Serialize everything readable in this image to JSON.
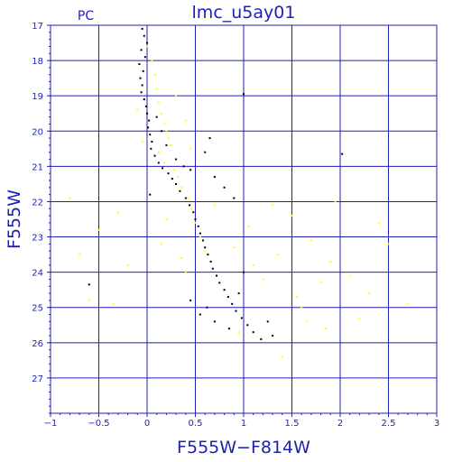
{
  "chart_data": {
    "type": "scatter",
    "title": "lmc_u5ay01",
    "panel_label": "PC",
    "xlabel": "F555W−F814W",
    "ylabel": "F555W",
    "xlim": [
      -1,
      3
    ],
    "ylim": [
      28,
      17
    ],
    "y_inverted": true,
    "grid": true,
    "x_ticks": [
      -1,
      -0.5,
      0,
      0.5,
      1,
      1.5,
      2,
      2.5,
      3
    ],
    "x_tick_labels": [
      "−1",
      "−0.5",
      "0",
      "0.5",
      "1",
      "1.5",
      "2",
      "2.5",
      "3"
    ],
    "y_ticks": [
      17,
      18,
      19,
      20,
      21,
      22,
      23,
      24,
      25,
      26,
      27
    ],
    "y_tick_labels": [
      "17",
      "18",
      "19",
      "20",
      "21",
      "22",
      "23",
      "24",
      "25",
      "26",
      "27"
    ],
    "series": [
      {
        "color": "#000000",
        "points": [
          [
            -0.05,
            17.1
          ],
          [
            -0.03,
            17.3
          ],
          [
            0.0,
            17.5
          ],
          [
            -0.06,
            17.7
          ],
          [
            -0.02,
            17.9
          ],
          [
            -0.08,
            18.1
          ],
          [
            -0.04,
            18.3
          ],
          [
            -0.07,
            18.5
          ],
          [
            -0.05,
            18.7
          ],
          [
            -0.06,
            18.9
          ],
          [
            -0.03,
            19.1
          ],
          [
            -0.01,
            19.3
          ],
          [
            0.0,
            19.5
          ],
          [
            0.02,
            19.7
          ],
          [
            0.01,
            19.9
          ],
          [
            0.03,
            20.1
          ],
          [
            0.05,
            20.3
          ],
          [
            0.04,
            20.5
          ],
          [
            0.08,
            20.7
          ],
          [
            0.12,
            20.9
          ],
          [
            0.16,
            21.05
          ],
          [
            0.22,
            21.2
          ],
          [
            0.26,
            21.35
          ],
          [
            0.3,
            21.5
          ],
          [
            0.34,
            21.7
          ],
          [
            0.4,
            21.9
          ],
          [
            0.44,
            22.1
          ],
          [
            0.48,
            22.3
          ],
          [
            0.5,
            22.5
          ],
          [
            0.53,
            22.7
          ],
          [
            0.55,
            22.9
          ],
          [
            0.58,
            23.1
          ],
          [
            0.6,
            23.3
          ],
          [
            0.63,
            23.5
          ],
          [
            0.66,
            23.7
          ],
          [
            0.68,
            23.9
          ],
          [
            0.72,
            24.1
          ],
          [
            0.75,
            24.3
          ],
          [
            0.8,
            24.5
          ],
          [
            0.84,
            24.7
          ],
          [
            0.88,
            24.9
          ],
          [
            0.92,
            25.1
          ],
          [
            0.98,
            25.3
          ],
          [
            1.04,
            25.5
          ],
          [
            1.1,
            25.7
          ],
          [
            1.18,
            25.9
          ],
          [
            0.55,
            25.2
          ],
          [
            0.7,
            25.4
          ],
          [
            0.85,
            25.6
          ],
          [
            1.25,
            25.4
          ],
          [
            0.95,
            24.6
          ],
          [
            1.0,
            24.0
          ],
          [
            0.45,
            24.8
          ],
          [
            0.62,
            25.0
          ],
          [
            1.3,
            25.8
          ],
          [
            0.2,
            20.4
          ],
          [
            0.3,
            20.8
          ],
          [
            0.45,
            21.1
          ],
          [
            0.6,
            20.6
          ],
          [
            0.7,
            21.3
          ],
          [
            0.8,
            21.6
          ],
          [
            0.9,
            21.9
          ],
          [
            0.65,
            20.2
          ],
          [
            0.38,
            21.0
          ],
          [
            1.0,
            18.95
          ],
          [
            2.02,
            20.65
          ],
          [
            -0.6,
            24.35
          ],
          [
            0.03,
            21.8
          ],
          [
            0.1,
            19.6
          ],
          [
            0.15,
            20.0
          ]
        ]
      },
      {
        "color": "#ffff00",
        "points": [
          [
            0.0,
            17.6
          ],
          [
            0.05,
            18.0
          ],
          [
            0.08,
            18.4
          ],
          [
            0.1,
            18.8
          ],
          [
            0.12,
            19.2
          ],
          [
            0.15,
            19.5
          ],
          [
            0.18,
            19.8
          ],
          [
            0.2,
            20.0
          ],
          [
            0.22,
            20.2
          ],
          [
            0.25,
            20.4
          ],
          [
            0.12,
            20.6
          ],
          [
            0.18,
            20.9
          ],
          [
            0.28,
            21.1
          ],
          [
            0.32,
            21.3
          ],
          [
            0.36,
            21.6
          ],
          [
            0.42,
            21.9
          ],
          [
            0.46,
            22.2
          ],
          [
            0.5,
            22.6
          ],
          [
            0.55,
            23.0
          ],
          [
            0.6,
            23.4
          ],
          [
            0.35,
            23.6
          ],
          [
            0.4,
            24.0
          ],
          [
            -0.1,
            19.4
          ],
          [
            -0.05,
            20.3
          ],
          [
            0.3,
            19.0
          ],
          [
            0.4,
            19.7
          ],
          [
            0.45,
            20.5
          ],
          [
            0.2,
            22.5
          ],
          [
            0.15,
            23.2
          ],
          [
            -0.3,
            22.3
          ],
          [
            -0.5,
            22.8
          ],
          [
            -0.7,
            23.5
          ],
          [
            -0.8,
            21.9
          ],
          [
            -0.6,
            24.8
          ],
          [
            -0.35,
            24.9
          ],
          [
            -0.2,
            23.8
          ],
          [
            1.3,
            22.1
          ],
          [
            1.5,
            22.4
          ],
          [
            1.7,
            23.1
          ],
          [
            1.9,
            23.7
          ],
          [
            2.1,
            24.1
          ],
          [
            2.3,
            24.6
          ],
          [
            2.5,
            23.2
          ],
          [
            2.7,
            24.9
          ],
          [
            1.6,
            25.0
          ],
          [
            1.8,
            24.3
          ],
          [
            1.2,
            24.2
          ],
          [
            1.4,
            26.4
          ],
          [
            1.95,
            22.0
          ],
          [
            2.4,
            22.6
          ],
          [
            0.9,
            23.3
          ],
          [
            1.1,
            23.8
          ],
          [
            1.35,
            23.5
          ],
          [
            1.55,
            24.7
          ],
          [
            1.85,
            25.6
          ],
          [
            0.95,
            25.7
          ],
          [
            1.65,
            25.4
          ],
          [
            2.2,
            25.3
          ],
          [
            1.05,
            22.7
          ],
          [
            0.7,
            22.1
          ]
        ]
      }
    ]
  }
}
